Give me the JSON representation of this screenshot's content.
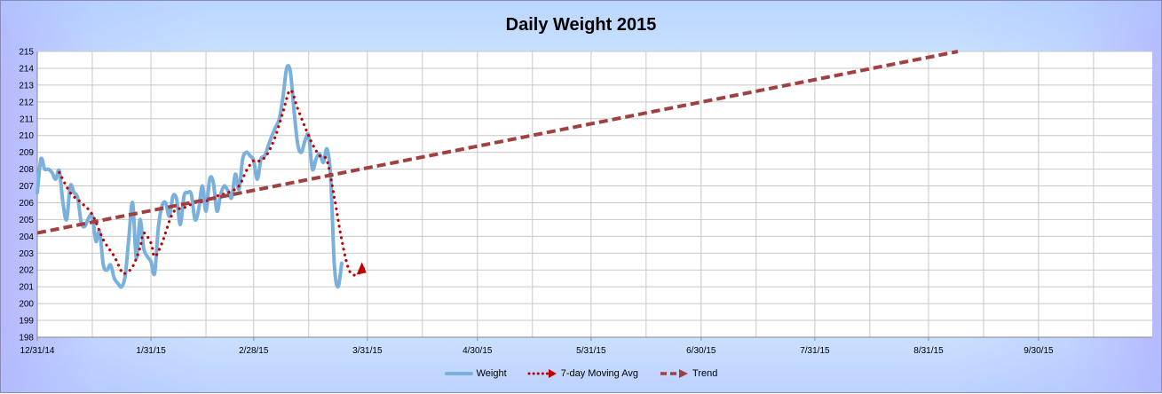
{
  "chart_data": {
    "type": "line",
    "title": "Daily Weight 2015",
    "xlabel": "",
    "ylabel": "",
    "x_range": [
      "2014-12-31",
      "2015-10-31"
    ],
    "x_ticks": [
      "12/31/14",
      "1/31/15",
      "2/28/15",
      "3/31/15",
      "4/30/15",
      "5/31/15",
      "6/30/15",
      "7/31/15",
      "8/31/15",
      "9/30/15"
    ],
    "x_tick_dates": [
      "2014-12-31",
      "2015-01-31",
      "2015-02-28",
      "2015-03-31",
      "2015-04-30",
      "2015-05-31",
      "2015-06-30",
      "2015-07-31",
      "2015-08-31",
      "2015-09-30"
    ],
    "ylim": [
      198,
      215
    ],
    "y_ticks": [
      198,
      199,
      200,
      201,
      202,
      203,
      204,
      205,
      206,
      207,
      208,
      209,
      210,
      211,
      212,
      213,
      214,
      215
    ],
    "grid": true,
    "legend_position": "bottom",
    "series": [
      {
        "name": "Weight",
        "style": "solid",
        "color": "#7ab0dc",
        "points": [
          [
            "2014-12-31",
            206.6
          ],
          [
            "2015-01-01",
            208.6
          ],
          [
            "2015-01-02",
            208.0
          ],
          [
            "2015-01-03",
            208.0
          ],
          [
            "2015-01-04",
            207.8
          ],
          [
            "2015-01-05",
            207.4
          ],
          [
            "2015-01-06",
            207.9
          ],
          [
            "2015-01-07",
            206.0
          ],
          [
            "2015-01-08",
            205.0
          ],
          [
            "2015-01-09",
            207.0
          ],
          [
            "2015-01-10",
            206.6
          ],
          [
            "2015-01-11",
            206.3
          ],
          [
            "2015-01-12",
            204.8
          ],
          [
            "2015-01-13",
            204.6
          ],
          [
            "2015-01-14",
            205.1
          ],
          [
            "2015-01-15",
            205.2
          ],
          [
            "2015-01-16",
            203.7
          ],
          [
            "2015-01-17",
            204.3
          ],
          [
            "2015-01-18",
            202.3
          ],
          [
            "2015-01-19",
            202.0
          ],
          [
            "2015-01-20",
            202.3
          ],
          [
            "2015-01-21",
            201.5
          ],
          [
            "2015-01-22",
            201.2
          ],
          [
            "2015-01-23",
            201.0
          ],
          [
            "2015-01-24",
            201.7
          ],
          [
            "2015-01-25",
            204.0
          ],
          [
            "2015-01-26",
            206.0
          ],
          [
            "2015-01-27",
            202.7
          ],
          [
            "2015-01-28",
            205.0
          ],
          [
            "2015-01-29",
            203.3
          ],
          [
            "2015-01-30",
            202.8
          ],
          [
            "2015-01-31",
            202.5
          ],
          [
            "2015-02-01",
            201.8
          ],
          [
            "2015-02-02",
            204.5
          ],
          [
            "2015-02-03",
            205.8
          ],
          [
            "2015-02-04",
            206.0
          ],
          [
            "2015-02-05",
            205.2
          ],
          [
            "2015-02-06",
            206.4
          ],
          [
            "2015-02-07",
            206.2
          ],
          [
            "2015-02-08",
            204.7
          ],
          [
            "2015-02-09",
            206.4
          ],
          [
            "2015-02-10",
            206.6
          ],
          [
            "2015-02-11",
            206.5
          ],
          [
            "2015-02-12",
            205.0
          ],
          [
            "2015-02-13",
            205.6
          ],
          [
            "2015-02-14",
            207.0
          ],
          [
            "2015-02-15",
            205.5
          ],
          [
            "2015-02-16",
            207.4
          ],
          [
            "2015-02-17",
            207.2
          ],
          [
            "2015-02-18",
            205.5
          ],
          [
            "2015-02-19",
            206.5
          ],
          [
            "2015-02-20",
            207.0
          ],
          [
            "2015-02-21",
            206.7
          ],
          [
            "2015-02-22",
            206.3
          ],
          [
            "2015-02-23",
            207.7
          ],
          [
            "2015-02-24",
            206.8
          ],
          [
            "2015-02-25",
            208.6
          ],
          [
            "2015-02-26",
            209.0
          ],
          [
            "2015-02-27",
            208.8
          ],
          [
            "2015-02-28",
            208.5
          ],
          [
            "2015-03-01",
            207.4
          ],
          [
            "2015-03-02",
            208.6
          ],
          [
            "2015-03-03",
            208.8
          ],
          [
            "2015-03-04",
            209.4
          ],
          [
            "2015-03-05",
            210.0
          ],
          [
            "2015-03-06",
            210.5
          ],
          [
            "2015-03-07",
            211.0
          ],
          [
            "2015-03-08",
            212.3
          ],
          [
            "2015-03-09",
            214.0
          ],
          [
            "2015-03-10",
            213.8
          ],
          [
            "2015-03-11",
            211.5
          ],
          [
            "2015-03-12",
            209.5
          ],
          [
            "2015-03-13",
            209.0
          ],
          [
            "2015-03-14",
            209.7
          ],
          [
            "2015-03-15",
            210.0
          ],
          [
            "2015-03-16",
            208.0
          ],
          [
            "2015-03-17",
            208.6
          ],
          [
            "2015-03-18",
            208.9
          ],
          [
            "2015-03-19",
            208.4
          ],
          [
            "2015-03-20",
            209.2
          ],
          [
            "2015-03-21",
            207.5
          ],
          [
            "2015-03-22",
            202.3
          ],
          [
            "2015-03-23",
            201.0
          ],
          [
            "2015-03-24",
            202.4
          ]
        ]
      },
      {
        "name": "7-day Moving Avg",
        "style": "dotted",
        "color": "#c00000",
        "points": [
          [
            "2015-01-06",
            207.8
          ],
          [
            "2015-01-09",
            206.6
          ],
          [
            "2015-01-12",
            206.0
          ],
          [
            "2015-01-15",
            205.3
          ],
          [
            "2015-01-18",
            203.8
          ],
          [
            "2015-01-21",
            202.8
          ],
          [
            "2015-01-23",
            201.9
          ],
          [
            "2015-01-24",
            201.8
          ],
          [
            "2015-01-26",
            202.2
          ],
          [
            "2015-01-28",
            203.3
          ],
          [
            "2015-01-29",
            204.2
          ],
          [
            "2015-01-31",
            203.6
          ],
          [
            "2015-02-01",
            202.8
          ],
          [
            "2015-02-03",
            203.6
          ],
          [
            "2015-02-06",
            205.4
          ],
          [
            "2015-02-09",
            205.7
          ],
          [
            "2015-02-12",
            206.0
          ],
          [
            "2015-02-15",
            206.1
          ],
          [
            "2015-02-18",
            206.4
          ],
          [
            "2015-02-21",
            206.6
          ],
          [
            "2015-02-24",
            207.0
          ],
          [
            "2015-02-26",
            207.9
          ],
          [
            "2015-02-28",
            208.5
          ],
          [
            "2015-03-02",
            208.5
          ],
          [
            "2015-03-04",
            209.0
          ],
          [
            "2015-03-06",
            210.0
          ],
          [
            "2015-03-08",
            211.4
          ],
          [
            "2015-03-10",
            212.7
          ],
          [
            "2015-03-12",
            211.6
          ],
          [
            "2015-03-14",
            210.5
          ],
          [
            "2015-03-16",
            209.5
          ],
          [
            "2015-03-18",
            208.8
          ],
          [
            "2015-03-20",
            208.5
          ],
          [
            "2015-03-22",
            206.3
          ],
          [
            "2015-03-24",
            203.8
          ],
          [
            "2015-03-26",
            202.0
          ],
          [
            "2015-03-28",
            201.7
          ],
          [
            "2015-03-30",
            202.1
          ]
        ]
      },
      {
        "name": "Trend",
        "style": "dashed",
        "color": "#a04040",
        "points": [
          [
            "2014-12-31",
            204.2
          ],
          [
            "2015-09-08",
            215.0
          ]
        ]
      }
    ]
  }
}
